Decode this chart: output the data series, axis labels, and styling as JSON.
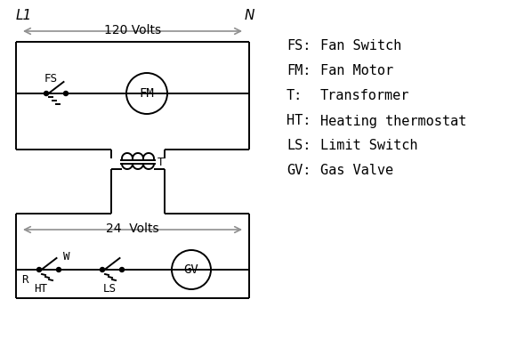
{
  "bg_color": "#ffffff",
  "line_color": "#000000",
  "arrow_color": "#909090",
  "legend": [
    [
      "FS:",
      "Fan Switch"
    ],
    [
      "FM:",
      "Fan Motor"
    ],
    [
      "T:",
      "Transformer"
    ],
    [
      "HT:",
      "Heating thermostat"
    ],
    [
      "LS:",
      "Limit Switch"
    ],
    [
      "GV:",
      "Gas Valve"
    ]
  ]
}
